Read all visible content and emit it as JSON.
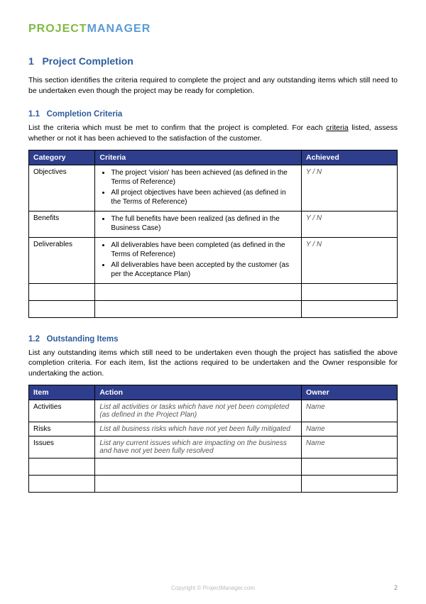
{
  "logo": {
    "part1": "PROJECT",
    "part2": "MANAGER"
  },
  "section1": {
    "number": "1",
    "title": "Project Completion",
    "intro": "This section identifies the criteria required to complete the project and any outstanding items which still need to be undertaken even though the project may be ready for completion."
  },
  "section1_1": {
    "number": "1.1",
    "title": "Completion Criteria",
    "intro_a": "List the criteria which must be met to confirm that the project is completed. For each ",
    "intro_word": "criteria",
    "intro_b": " listed, assess whether or not it has been achieved to the satisfaction of the customer.",
    "headers": {
      "c1": "Category",
      "c2": "Criteria",
      "c3": "Achieved"
    },
    "rows": [
      {
        "category": "Objectives",
        "criteria": [
          "The project 'vision' has been achieved (as defined in the Terms of Reference)",
          "All project objectives have been achieved (as defined in the Terms of Reference)"
        ],
        "achieved": "Y / N"
      },
      {
        "category": "Benefits",
        "criteria": [
          "The full benefits have been realized (as defined in the Business Case)"
        ],
        "achieved": "Y / N"
      },
      {
        "category": "Deliverables",
        "criteria": [
          "All deliverables have been completed (as defined in the Terms of Reference)",
          "All deliverables have been accepted by the customer (as per the Acceptance Plan)"
        ],
        "achieved": "Y / N"
      }
    ]
  },
  "section1_2": {
    "number": "1.2",
    "title": "Outstanding Items",
    "intro": "List any outstanding items which still need to be undertaken even though the project has satisfied the above completion criteria. For each item, list the actions required to be undertaken and the Owner responsible for undertaking the action.",
    "headers": {
      "c1": "Item",
      "c2": "Action",
      "c3": "Owner"
    },
    "rows": [
      {
        "item": "Activities",
        "action": "List all activities or tasks which have not yet been completed (as defined in the Project Plan)",
        "owner": "Name"
      },
      {
        "item": "Risks",
        "action": "List all business risks which have not yet been fully mitigated",
        "owner": "Name"
      },
      {
        "item": "Issues",
        "action": "List any current issues which are impacting on the business and have not yet been fully resolved",
        "owner": "Name"
      }
    ]
  },
  "footer": "Copyright © ProjectManager.com",
  "page": "2",
  "colors": {
    "heading": "#2e5c9e",
    "table_header_bg": "#2e3e8c",
    "logo_green": "#7fba42",
    "logo_blue": "#5b9bd5"
  }
}
